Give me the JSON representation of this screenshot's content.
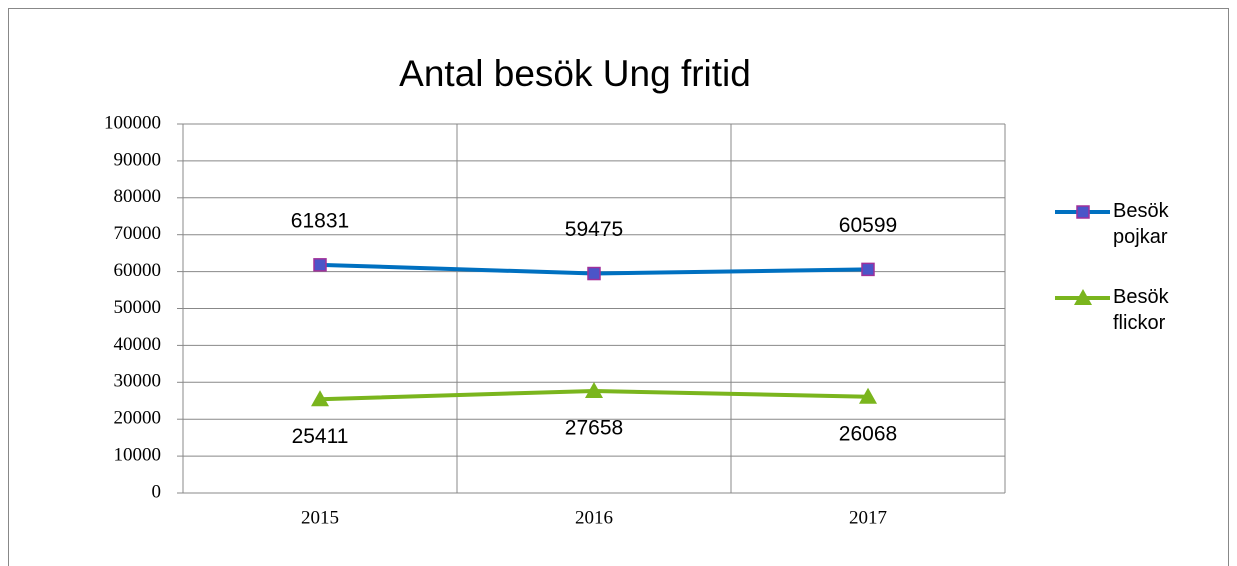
{
  "chart_data": {
    "type": "line",
    "title": "Antal besök Ung fritid",
    "categories": [
      "2015",
      "2016",
      "2017"
    ],
    "series": [
      {
        "name": "Besök pojkar",
        "color": "#0070c0",
        "marker": "square",
        "values": [
          61831,
          59475,
          60599
        ]
      },
      {
        "name": "Besök flickor",
        "color": "#7ab51d",
        "marker": "triangle",
        "values": [
          25411,
          27658,
          26068
        ]
      }
    ],
    "ylim": [
      0,
      100000
    ],
    "yticks": [
      0,
      10000,
      20000,
      30000,
      40000,
      50000,
      60000,
      70000,
      80000,
      90000,
      100000
    ],
    "grid": true,
    "legend": "right"
  }
}
